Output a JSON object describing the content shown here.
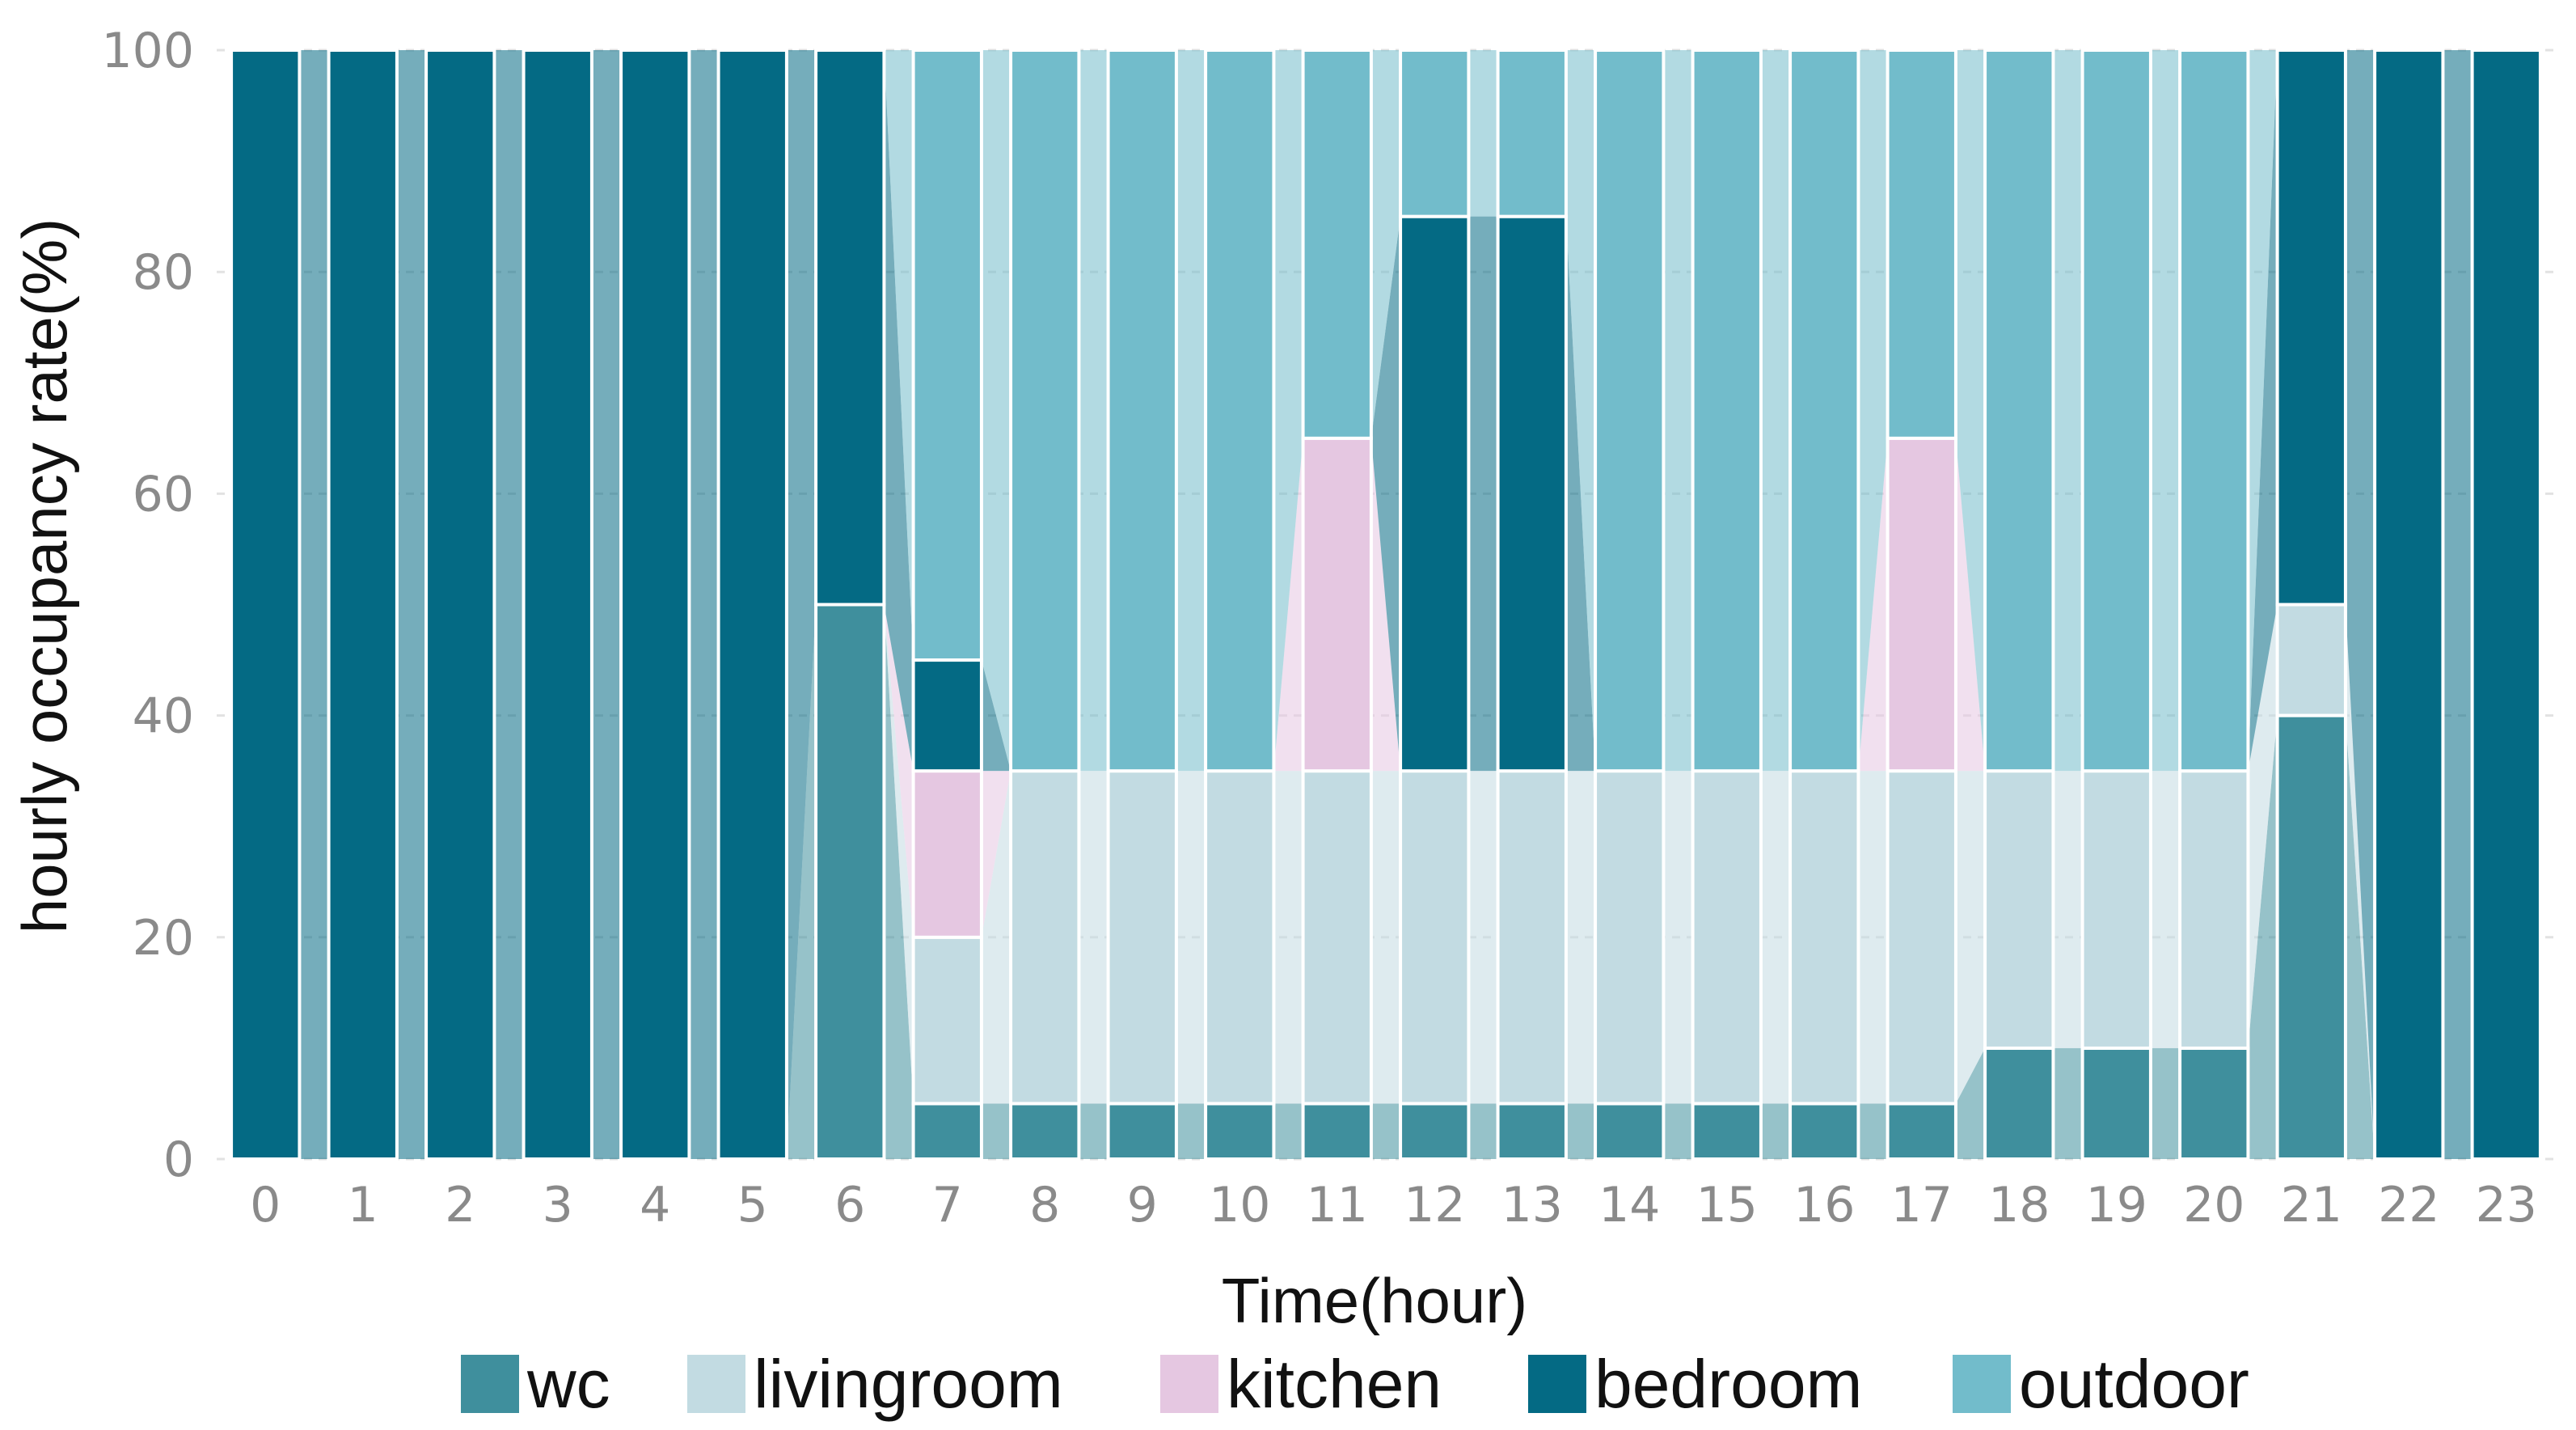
{
  "chart_data": {
    "type": "bar",
    "stacked": true,
    "categories": [
      "0",
      "1",
      "2",
      "3",
      "4",
      "5",
      "6",
      "7",
      "8",
      "9",
      "10",
      "11",
      "12",
      "13",
      "14",
      "15",
      "16",
      "17",
      "18",
      "19",
      "20",
      "21",
      "22",
      "23"
    ],
    "series": [
      {
        "name": "wc",
        "color": "#3f8f9d",
        "values": [
          0,
          0,
          0,
          0,
          0,
          0,
          50,
          5,
          5,
          5,
          5,
          5,
          5,
          5,
          5,
          5,
          5,
          5,
          10,
          10,
          10,
          40,
          0,
          0
        ]
      },
      {
        "name": "livingroom",
        "color": "#c2dbe2",
        "values": [
          0,
          0,
          0,
          0,
          0,
          0,
          0,
          15,
          30,
          30,
          30,
          30,
          30,
          30,
          30,
          30,
          30,
          30,
          25,
          25,
          25,
          10,
          0,
          0
        ]
      },
      {
        "name": "kitchen",
        "color": "#e5c7e1",
        "values": [
          0,
          0,
          0,
          0,
          0,
          0,
          0,
          15,
          0,
          0,
          0,
          30,
          0,
          0,
          0,
          0,
          0,
          30,
          0,
          0,
          0,
          0,
          0,
          0
        ]
      },
      {
        "name": "bedroom",
        "color": "#046a84",
        "values": [
          100,
          100,
          100,
          100,
          100,
          100,
          50,
          10,
          0,
          0,
          0,
          0,
          50,
          50,
          0,
          0,
          0,
          0,
          0,
          0,
          0,
          50,
          100,
          100
        ]
      },
      {
        "name": "outdoor",
        "color": "#72bccb",
        "values": [
          0,
          0,
          0,
          0,
          0,
          0,
          0,
          55,
          65,
          65,
          65,
          35,
          15,
          15,
          65,
          65,
          65,
          35,
          65,
          65,
          65,
          0,
          0,
          0
        ]
      }
    ],
    "xlabel": "Time(hour)",
    "ylabel": "hourly occupancy rate(%)",
    "ylim": [
      0,
      100
    ],
    "yticks": [
      "0",
      "20",
      "40",
      "60",
      "80",
      "100"
    ],
    "grid": true,
    "legend_position": "bottom"
  }
}
